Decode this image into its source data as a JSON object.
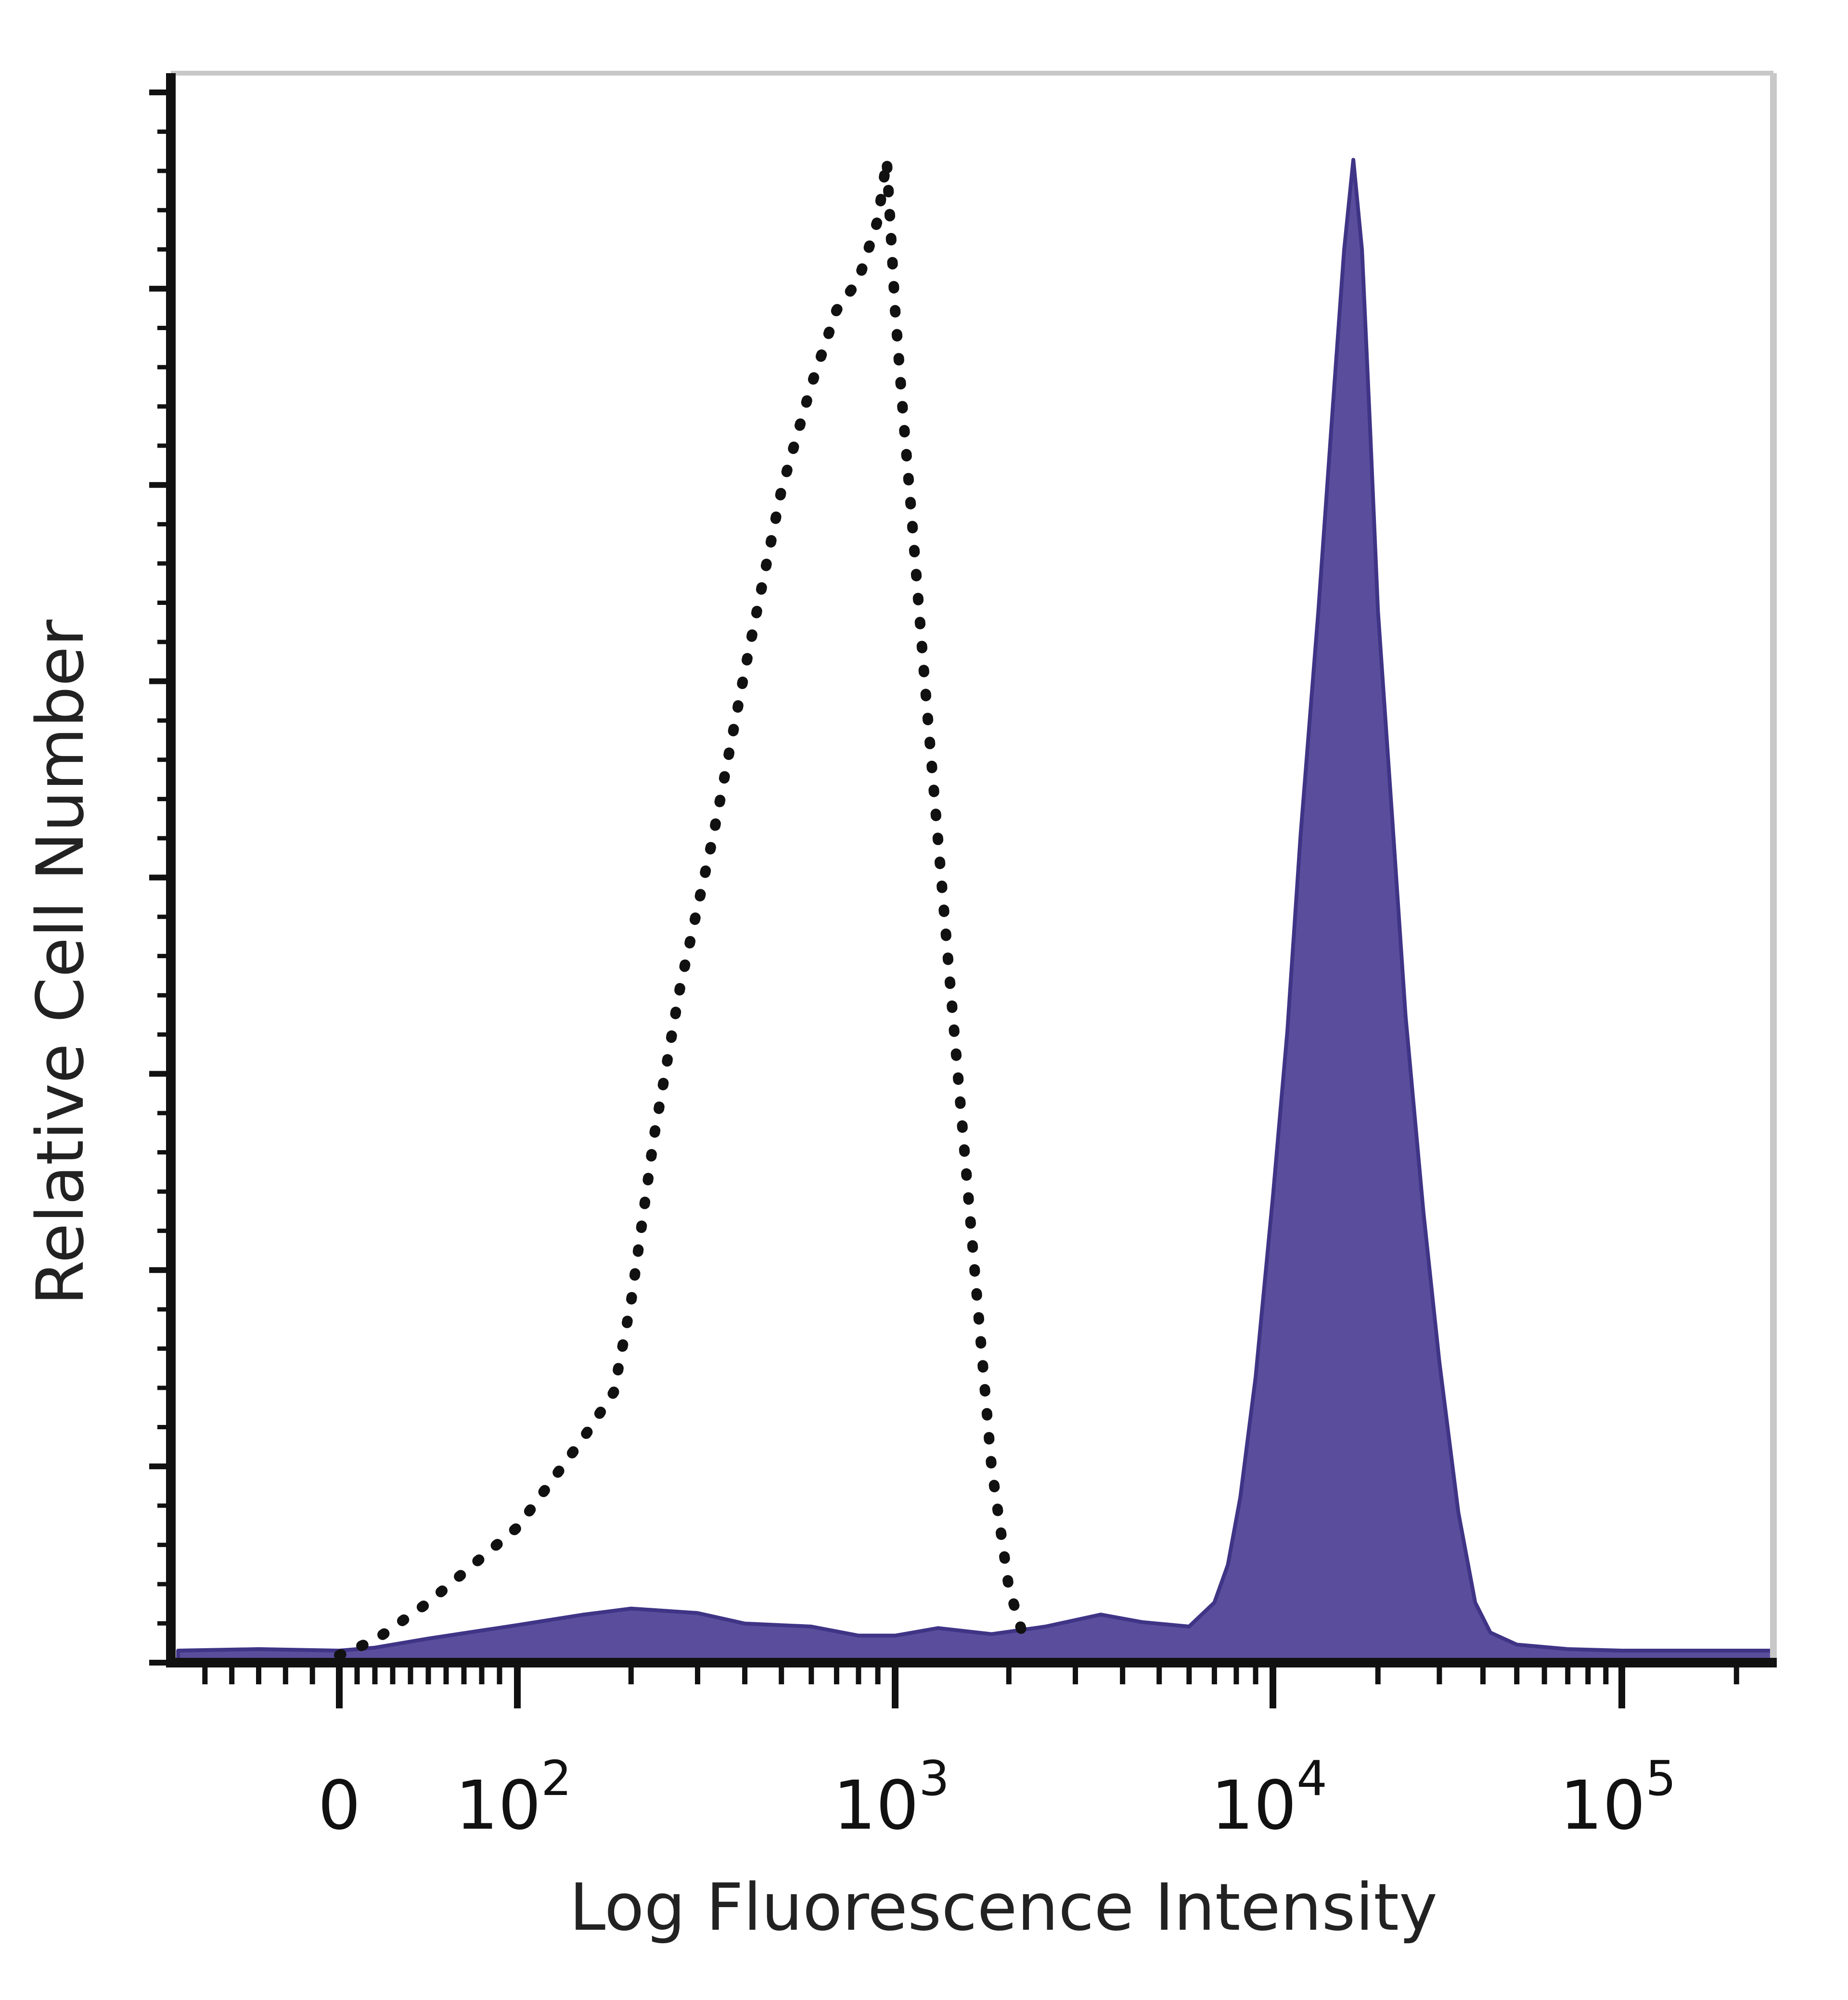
{
  "chart_data": {
    "type": "area",
    "xlabel": "Log Fluorescence Intensity",
    "ylabel": "Relative Cell Number",
    "x_scale": "biexponential",
    "x_ticks": [
      {
        "value": 0,
        "base": "0",
        "exp": ""
      },
      {
        "value": 100,
        "base": "10",
        "exp": "2"
      },
      {
        "value": 1000,
        "base": "10",
        "exp": "3"
      },
      {
        "value": 10000,
        "base": "10",
        "exp": "4"
      },
      {
        "value": 100000,
        "base": "10",
        "exp": "5"
      }
    ],
    "xlim": [
      -60,
      250000
    ],
    "ylim": [
      0,
      100
    ],
    "colors": {
      "filled": "#5a4e9c",
      "filled_edge": "#3f3486",
      "control": "#111111",
      "frame": "#111111",
      "frame_light": "#c8c8c8"
    },
    "series": [
      {
        "style": "filled",
        "x": [
          -60,
          -30,
          0,
          20,
          50,
          100,
          150,
          200,
          300,
          400,
          600,
          800,
          1000,
          1300,
          1800,
          2500,
          3500,
          4500,
          6000,
          7000,
          7600,
          8200,
          9000,
          10000,
          11000,
          12000,
          13500,
          15000,
          16000,
          17000,
          18000,
          19000,
          20000,
          22000,
          24000,
          27000,
          30000,
          34000,
          38000,
          42000,
          50000,
          70000,
          100000,
          150000,
          250000
        ],
        "y": [
          0.8,
          0.9,
          0.8,
          1.0,
          1.6,
          2.5,
          3.2,
          3.6,
          3.3,
          2.6,
          2.4,
          1.8,
          1.8,
          2.3,
          1.9,
          2.4,
          3.2,
          2.7,
          2.4,
          4.0,
          6.5,
          11,
          19,
          31,
          42,
          55,
          70,
          85,
          94,
          100,
          94,
          82,
          70,
          56,
          43,
          30,
          20,
          10,
          4,
          2.0,
          1.2,
          0.9,
          0.8,
          0.8,
          0.8
        ]
      },
      {
        "style": "dotted",
        "x": [
          0,
          20,
          50,
          100,
          150,
          180,
          200,
          230,
          270,
          330,
          400,
          500,
          600,
          700,
          800,
          900,
          950,
          1000,
          1050,
          1100,
          1200,
          1400,
          1600,
          1800,
          2000,
          2200
        ],
        "y": [
          0.5,
          1.5,
          4,
          9,
          15,
          18,
          24,
          35,
          45,
          55,
          66,
          78,
          85,
          90,
          92,
          96,
          100,
          90,
          83,
          77,
          65,
          45,
          28,
          13,
          5,
          1.5
        ]
      }
    ]
  }
}
